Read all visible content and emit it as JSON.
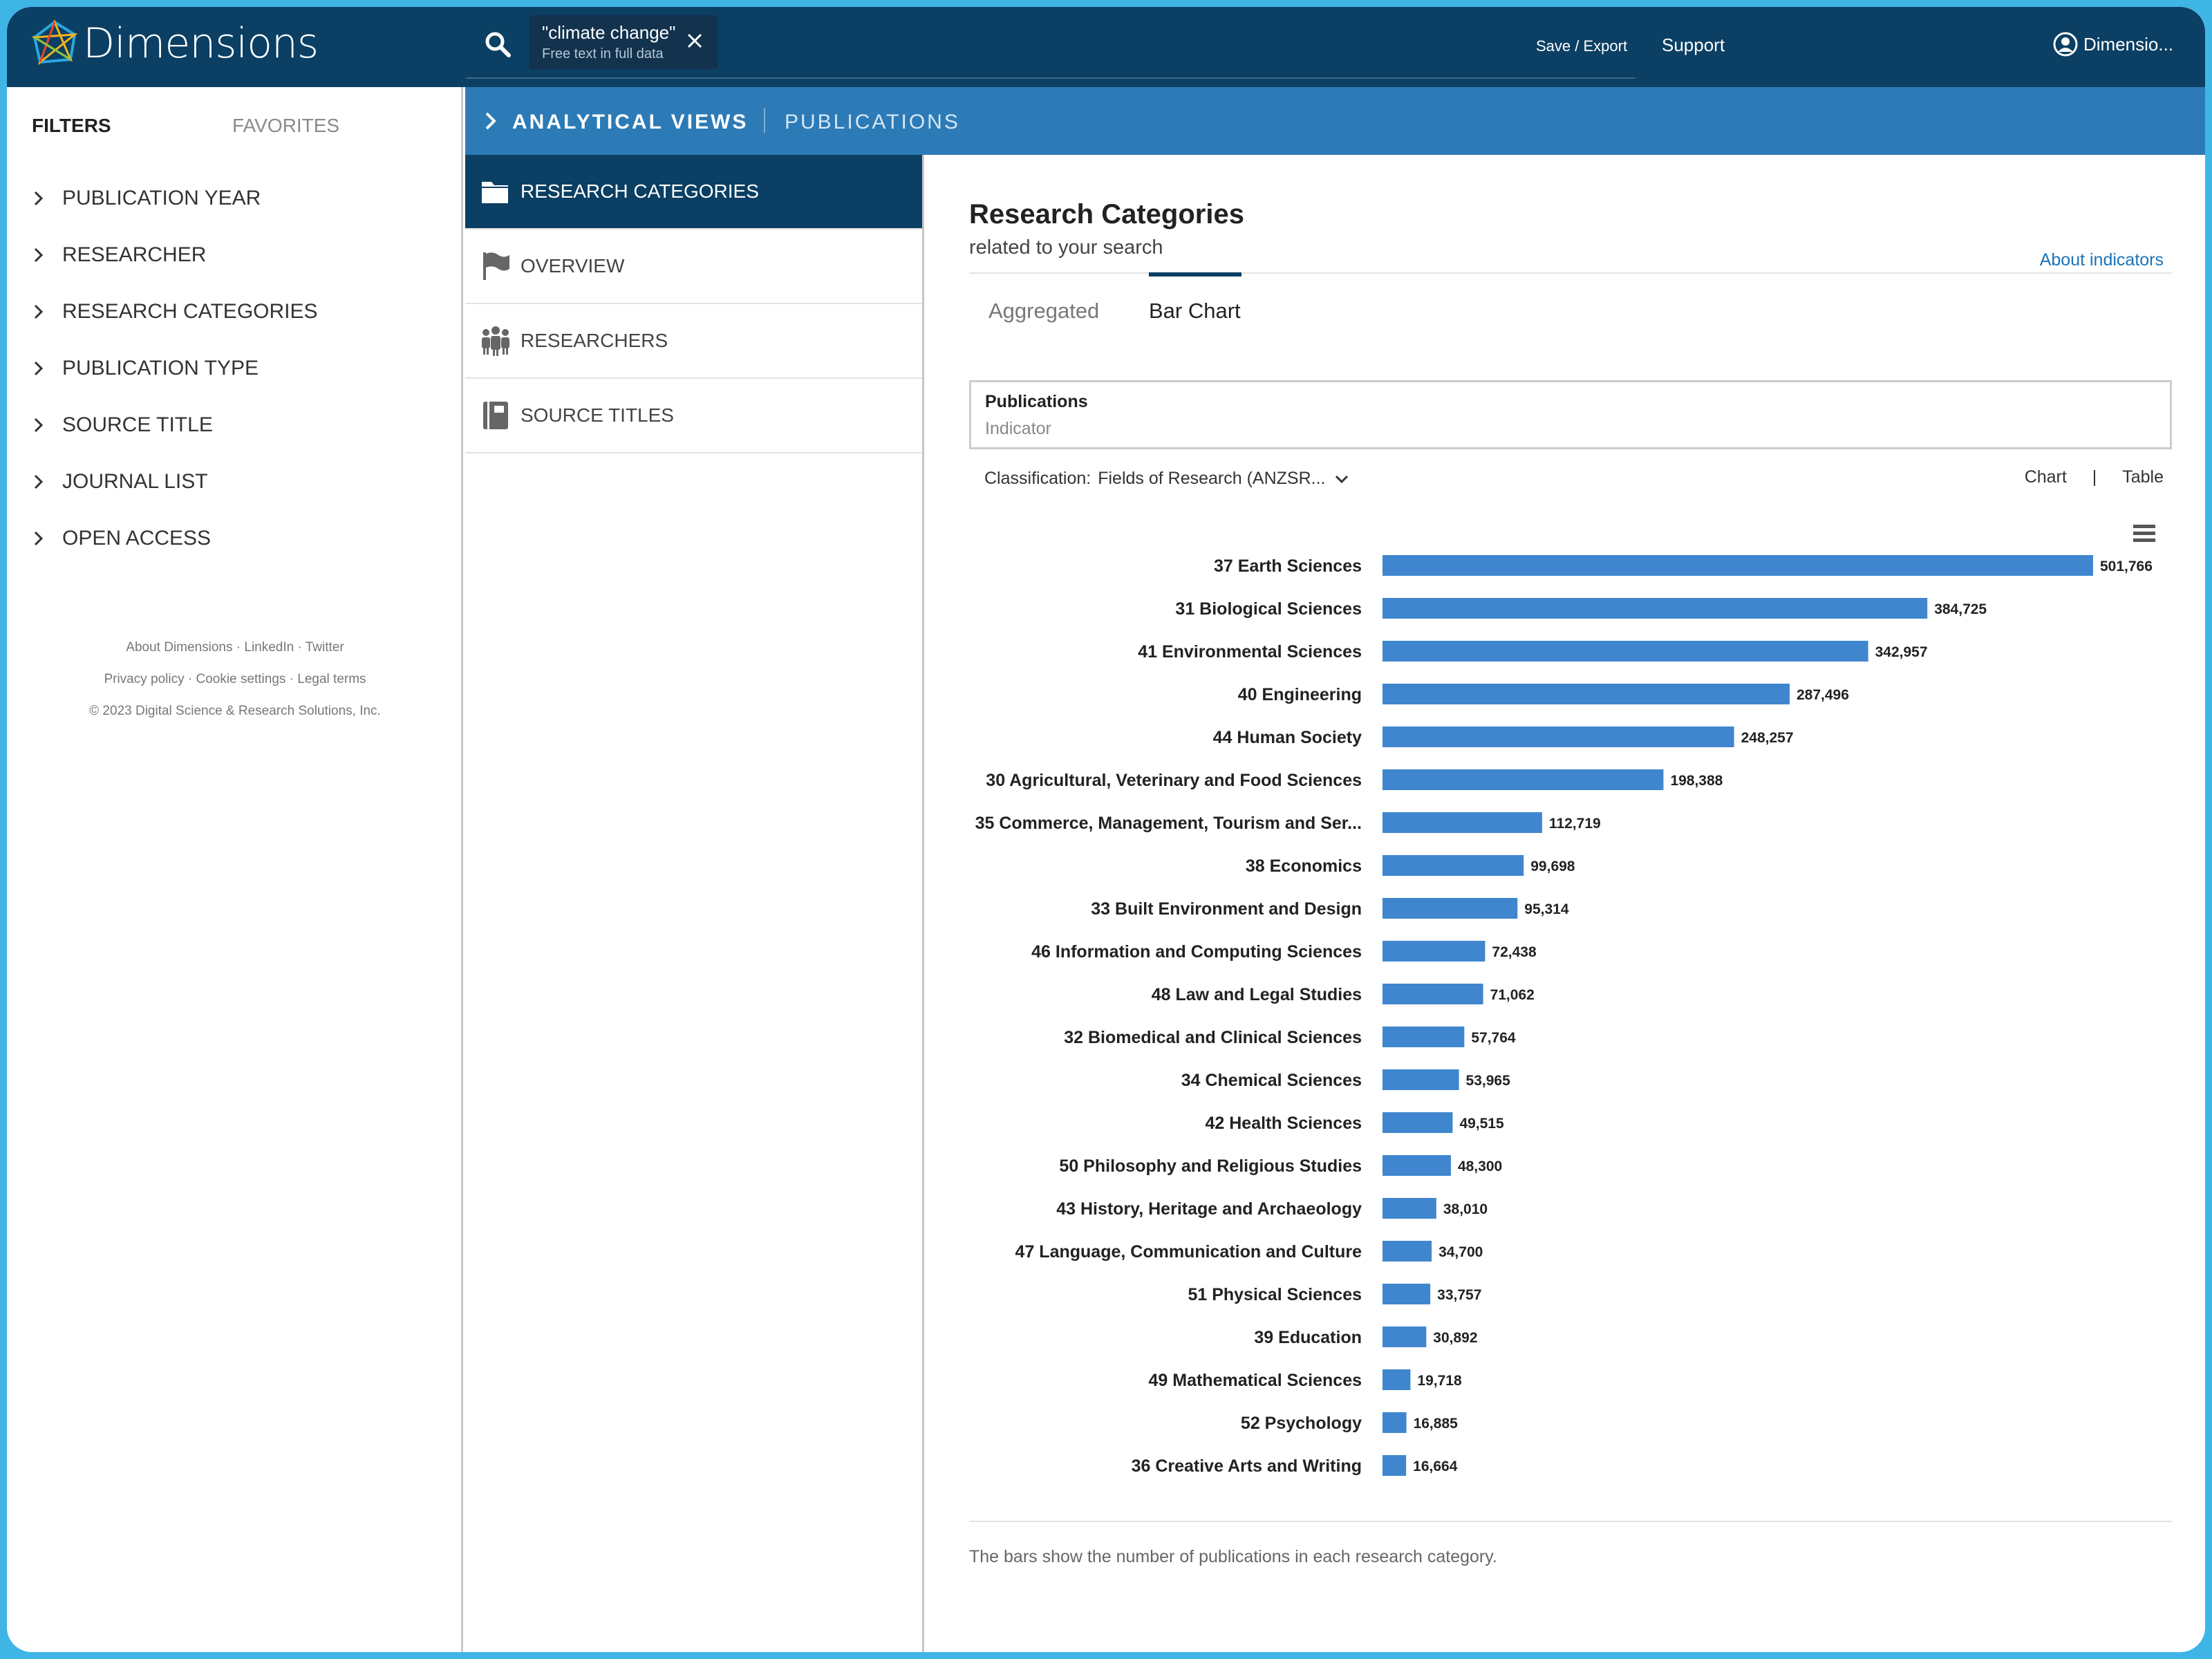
{
  "header": {
    "app_name": "Dimensions",
    "search_chip_title": "\"climate change\"",
    "search_chip_sub": "Free text in full data",
    "save_export": "Save / Export",
    "support": "Support",
    "user_label": "Dimensio..."
  },
  "filters": {
    "tab_filters": "FILTERS",
    "tab_favorites": "FAVORITES",
    "items": [
      "PUBLICATION YEAR",
      "RESEARCHER",
      "RESEARCH CATEGORIES",
      "PUBLICATION TYPE",
      "SOURCE TITLE",
      "JOURNAL LIST",
      "OPEN ACCESS"
    ],
    "footer_line1": "About Dimensions · LinkedIn · Twitter",
    "footer_line2": "Privacy policy · Cookie settings · Legal terms",
    "footer_line3": "© 2023 Digital Science & Research Solutions, Inc."
  },
  "analytical_bar": {
    "title": "ANALYTICAL VIEWS",
    "subtitle": "PUBLICATIONS"
  },
  "views": {
    "items": [
      {
        "label": "RESEARCH CATEGORIES",
        "icon": "folder-icon"
      },
      {
        "label": "OVERVIEW",
        "icon": "flag-icon"
      },
      {
        "label": "RESEARCHERS",
        "icon": "people-icon"
      },
      {
        "label": "SOURCE TITLES",
        "icon": "book-icon"
      }
    ]
  },
  "main": {
    "title": "Research Categories",
    "subtitle": "related to your search",
    "about_link": "About indicators",
    "tab_aggregated": "Aggregated",
    "tab_bar_chart": "Bar Chart",
    "indicator_title": "Publications",
    "indicator_sub": "Indicator",
    "classification_label": "Classification:",
    "classification_value": "Fields of Research (ANZSR...",
    "view_chart": "Chart",
    "view_sep": "|",
    "view_table": "Table",
    "note": "The bars show the number of publications in each research category."
  },
  "colors": {
    "bar": "#3f86cf",
    "header": "#0b3f63",
    "accent_bar": "#2c7bb6"
  },
  "chart_data": {
    "type": "bar",
    "orientation": "horizontal",
    "categories": [
      "37 Earth Sciences",
      "31 Biological Sciences",
      "41 Environmental Sciences",
      "40 Engineering",
      "44 Human Society",
      "30 Agricultural, Veterinary and Food Sciences",
      "35 Commerce, Management, Tourism and Ser...",
      "38 Economics",
      "33 Built Environment and Design",
      "46 Information and Computing Sciences",
      "48 Law and Legal Studies",
      "32 Biomedical and Clinical Sciences",
      "34 Chemical Sciences",
      "42 Health Sciences",
      "50 Philosophy and Religious Studies",
      "43 History, Heritage and Archaeology",
      "47 Language, Communication and Culture",
      "51 Physical Sciences",
      "39 Education",
      "49 Mathematical Sciences",
      "52 Psychology",
      "36 Creative Arts and Writing"
    ],
    "values": [
      501766,
      384725,
      342957,
      287496,
      248257,
      198388,
      112719,
      99698,
      95314,
      72438,
      71062,
      57764,
      53965,
      49515,
      48300,
      38010,
      34700,
      33757,
      30892,
      19718,
      16885,
      16664
    ],
    "value_labels": [
      "501,766",
      "384,725",
      "342,957",
      "287,496",
      "248,257",
      "198,388",
      "112,719",
      "99,698",
      "95,314",
      "72,438",
      "71,062",
      "57,764",
      "53,965",
      "49,515",
      "48,300",
      "38,010",
      "34,700",
      "33,757",
      "30,892",
      "19,718",
      "16,885",
      "16,664"
    ],
    "xlim": [
      0,
      501766
    ],
    "grid": false
  }
}
